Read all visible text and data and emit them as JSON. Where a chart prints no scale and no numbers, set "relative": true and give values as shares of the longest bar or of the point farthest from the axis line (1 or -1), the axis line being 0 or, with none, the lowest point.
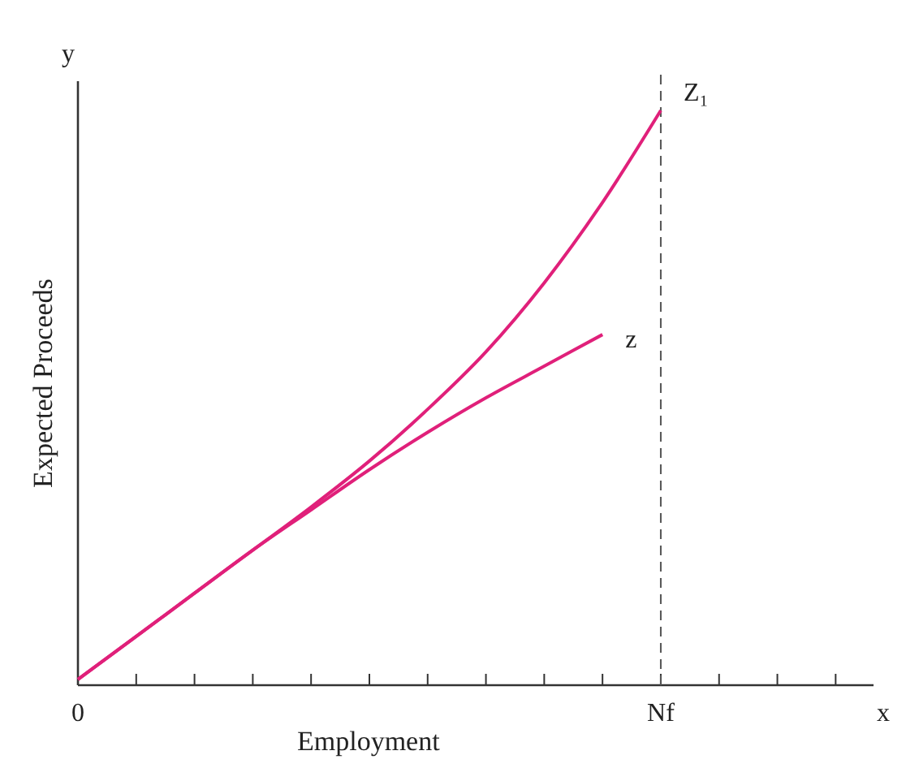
{
  "chart_data": {
    "type": "line",
    "relative": true,
    "xlabel": "Employment",
    "ylabel": "Expected Proceeds",
    "annotations": [
      "y",
      "x"
    ],
    "categories": [
      "0",
      null,
      null,
      null,
      null,
      null,
      null,
      null,
      null,
      null,
      "Nf",
      null,
      null,
      null
    ],
    "tick_labels": "x",
    "line_style": "solid",
    "ref_lines": [
      {
        "axis": "x",
        "value": "Nf",
        "line_style": "dashed",
        "color": "#555555"
      }
    ],
    "series": [
      {
        "name": "Z₁",
        "color": "#e0207a",
        "values": [
          0.01,
          0.085,
          0.16,
          0.235,
          0.31,
          0.39,
          0.48,
          0.58,
          0.7,
          0.84,
          1,
          null,
          null,
          null
        ]
      },
      {
        "name": "z",
        "color": "#e0207a",
        "values": [
          0.01,
          0.085,
          0.16,
          0.235,
          0.305,
          0.375,
          0.44,
          0.5,
          0.555,
          0.61,
          null,
          null,
          null,
          null
        ]
      }
    ]
  }
}
